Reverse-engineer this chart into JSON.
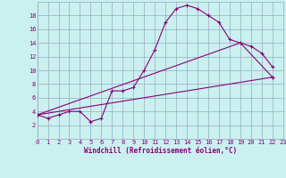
{
  "xlabel": "Windchill (Refroidissement éolien,°C)",
  "bg_color": "#caf0f0",
  "grid_color": "#99aabb",
  "line_color": "#880077",
  "xlim": [
    0,
    23
  ],
  "ylim": [
    0,
    20
  ],
  "xticks": [
    0,
    1,
    2,
    3,
    4,
    5,
    6,
    7,
    8,
    9,
    10,
    11,
    12,
    13,
    14,
    15,
    16,
    17,
    18,
    19,
    20,
    21,
    22,
    23
  ],
  "yticks": [
    2,
    4,
    6,
    8,
    10,
    12,
    14,
    16,
    18
  ],
  "line1_x": [
    0,
    1,
    2,
    3,
    4,
    5,
    6,
    7,
    8,
    9,
    10,
    11,
    12,
    13,
    14,
    15,
    16,
    17,
    18,
    19,
    20,
    21,
    22
  ],
  "line1_y": [
    3.5,
    3.0,
    3.5,
    4.0,
    4.0,
    2.5,
    3.0,
    7.0,
    7.0,
    7.5,
    10.0,
    13.0,
    17.0,
    19.0,
    19.5,
    19.0,
    18.0,
    17.0,
    14.5,
    14.0,
    13.5,
    12.5,
    10.5
  ],
  "line2_x": [
    0,
    22
  ],
  "line2_y": [
    3.5,
    9.0
  ],
  "line3_x": [
    0,
    19,
    22
  ],
  "line3_y": [
    3.5,
    14.0,
    9.0
  ],
  "tick_fontsize": 5.0,
  "xlabel_fontsize": 5.5
}
